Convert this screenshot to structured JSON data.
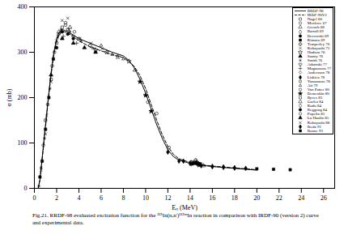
{
  "chart_data": {
    "type": "scatter",
    "caption": "Fig.21.   RRDF-98 evaluated excitation function for the ¹¹⁵In(n,n')¹¹⁵ᵐIn reaction in comparison with IRDF-90 (version 2) curve and experimental data.",
    "x_label": "Eₙ (MeV)",
    "y_label": "σ (mb)",
    "xlim": [
      0,
      27
    ],
    "xticks": [
      0,
      2,
      4,
      6,
      8,
      10,
      12,
      14,
      16,
      18,
      20,
      22,
      24,
      26
    ],
    "ylim": [
      0,
      400
    ],
    "yticks": [
      0,
      100,
      200,
      300,
      400
    ],
    "grid": false,
    "legend": "top-right",
    "series": [
      {
        "name": "RRDF-98",
        "type": "line",
        "line_style": "solid",
        "color": "#000000",
        "x": [
          0.34,
          0.5,
          0.75,
          1,
          1.25,
          1.5,
          1.75,
          2,
          2.25,
          2.5,
          2.75,
          3,
          3.5,
          4,
          5,
          6,
          7,
          8,
          8.5,
          9,
          9.5,
          10,
          10.5,
          11,
          11.5,
          12,
          12.5,
          13,
          14,
          15,
          16,
          17,
          18,
          19,
          20
        ],
        "values": [
          0,
          20,
          80,
          140,
          200,
          255,
          300,
          330,
          345,
          350,
          348,
          345,
          338,
          330,
          320,
          310,
          300,
          292,
          282,
          265,
          240,
          210,
          175,
          140,
          110,
          85,
          70,
          62,
          55,
          51,
          48,
          46,
          44,
          42,
          40
        ]
      },
      {
        "name": "IRDF-90V2",
        "type": "line",
        "line_style": "dashed",
        "color": "#000000",
        "x": [
          0.34,
          0.5,
          0.75,
          1,
          1.25,
          1.5,
          1.75,
          2,
          2.25,
          2.5,
          2.75,
          3,
          3.5,
          4,
          5,
          6,
          7,
          8,
          8.5,
          9,
          9.5,
          10,
          10.5,
          11,
          11.5,
          12,
          12.5,
          13,
          14,
          15,
          16,
          17,
          18,
          19,
          20
        ],
        "values": [
          0,
          18,
          75,
          135,
          195,
          250,
          295,
          325,
          340,
          345,
          345,
          342,
          335,
          325,
          312,
          303,
          295,
          288,
          280,
          268,
          248,
          220,
          185,
          150,
          118,
          92,
          75,
          65,
          57,
          52,
          49,
          47,
          45,
          43,
          41
        ]
      },
      {
        "name": "Nagel 66",
        "marker": "square-open",
        "color": "#000000",
        "x": [
          1,
          1.5,
          2,
          2.5,
          3,
          4
        ],
        "values": [
          150,
          240,
          320,
          355,
          350,
          330
        ]
      },
      {
        "name": "Menlove 67",
        "marker": "circle-open",
        "color": "#000000",
        "x": [
          0.8,
          1.2,
          1.6,
          2.2,
          2.8,
          3.5,
          5
        ],
        "values": [
          95,
          185,
          270,
          340,
          360,
          335,
          315
        ]
      },
      {
        "name": "Grench 68",
        "marker": "triangle-open",
        "color": "#000000",
        "x": [
          14.5,
          14.8,
          15.2
        ],
        "values": [
          55,
          52,
          50
        ]
      },
      {
        "name": "Barrall 69",
        "marker": "diamond-open",
        "color": "#000000",
        "x": [
          14.1,
          14.7,
          16,
          17,
          18
        ],
        "values": [
          54,
          52,
          48,
          46,
          45
        ]
      },
      {
        "name": "Decowski 69",
        "marker": "circle-filled",
        "color": "#000000",
        "x": [
          2,
          2.5,
          3,
          3.5
        ],
        "values": [
          310,
          345,
          340,
          330
        ]
      },
      {
        "name": "Kimura 69",
        "marker": "square-filled",
        "color": "#000000",
        "x": [
          0.5,
          0.7,
          1,
          1.3,
          1.7
        ],
        "values": [
          25,
          60,
          130,
          200,
          285
        ]
      },
      {
        "name": "Temperley 70",
        "marker": "cross-open",
        "color": "#000000",
        "x": [
          14.5,
          14.6
        ],
        "values": [
          62,
          58
        ]
      },
      {
        "name": "Kobayashi 73",
        "marker": "times-open",
        "color": "#000000",
        "x": [
          0.6,
          1,
          1.5,
          2,
          2.5,
          3
        ],
        "values": [
          40,
          120,
          235,
          325,
          370,
          375
        ]
      },
      {
        "name": "Hudson 76",
        "marker": "star-open",
        "color": "#000000",
        "x": [
          5.5,
          6.5,
          7.5,
          8.5
        ],
        "values": [
          305,
          300,
          290,
          280
        ]
      },
      {
        "name": "Santry 76",
        "marker": "triangle-filled",
        "color": "#000000",
        "x": [
          1.5,
          2.5,
          3.5,
          4.5,
          5.5
        ],
        "values": [
          250,
          330,
          320,
          310,
          300
        ]
      },
      {
        "name": "Smith 76",
        "marker": "asterisk-open",
        "color": "#000000",
        "x": [
          0.4,
          0.6,
          0.9,
          1.4,
          1.9,
          2.4,
          3.2,
          4.2
        ],
        "values": [
          5,
          45,
          110,
          220,
          310,
          350,
          345,
          325
        ]
      },
      {
        "name": "Adamski 77",
        "marker": "wye-open",
        "color": "#000000",
        "x": [
          14.6,
          14.9
        ],
        "values": [
          56,
          54
        ]
      },
      {
        "name": "Magnusson 77",
        "marker": "plus-open",
        "color": "#000000",
        "x": [
          2.6,
          3.8,
          5.2
        ],
        "values": [
          335,
          320,
          310
        ]
      },
      {
        "name": "Andersson 78",
        "marker": "diamond2-open",
        "color": "#000000",
        "x": [
          14.7
        ],
        "values": [
          53
        ]
      },
      {
        "name": "Liskien 78",
        "marker": "diamond-filled",
        "color": "#000000",
        "x": [
          12,
          13,
          14,
          15,
          16,
          17,
          18,
          19
        ],
        "values": [
          80,
          60,
          55,
          50,
          48,
          47,
          45,
          44
        ]
      },
      {
        "name": "Yamamoto 78",
        "marker": "square2-open",
        "color": "#000000",
        "x": [
          14.1,
          14.4,
          14.9
        ],
        "values": [
          58,
          56,
          53
        ]
      },
      {
        "name": "Ait 79",
        "marker": "triangle2-open",
        "color": "#000000",
        "x": [
          6,
          7,
          8,
          9
        ],
        "values": [
          315,
          295,
          285,
          260
        ]
      },
      {
        "name": "Van Patter 80",
        "marker": "circle-open",
        "color": "#000000",
        "x": [
          1.8,
          2.8,
          3.6
        ],
        "values": [
          300,
          365,
          345
        ]
      },
      {
        "name": "Demenkin 80",
        "marker": "star-filled",
        "color": "#000000",
        "x": [
          9.5,
          10,
          10.5
        ],
        "values": [
          235,
          205,
          170
        ]
      },
      {
        "name": "Ryves 83",
        "marker": "square-open",
        "color": "#000000",
        "x": [
          14.7,
          14.8
        ],
        "values": [
          55,
          54
        ]
      },
      {
        "name": "Garlea 84",
        "marker": "triangle-open",
        "color": "#000000",
        "x": [
          2.2,
          3.2
        ],
        "values": [
          345,
          355
        ]
      },
      {
        "name": "Kudo 84",
        "marker": "diamond-open",
        "color": "#000000",
        "x": [
          14.1,
          14.9
        ],
        "values": [
          57,
          52
        ]
      },
      {
        "name": "Reggoug 84",
        "marker": "circle-filled",
        "color": "#000000",
        "x": [
          14.2
        ],
        "values": [
          54
        ]
      },
      {
        "name": "Popelin 85",
        "marker": "circle-open",
        "color": "#000000",
        "x": [
          10.2,
          11,
          12.1
        ],
        "values": [
          190,
          165,
          90
        ]
      },
      {
        "name": "Lu Hanlin 85",
        "marker": "triangle-filled",
        "color": "#000000",
        "x": [
          14.5,
          14.6
        ],
        "values": [
          56,
          55
        ]
      },
      {
        "name": "Kobayashi 88",
        "marker": "times-open",
        "color": "#000000",
        "x": [
          1.1,
          2.1,
          3.1,
          4.1,
          5.1,
          6.1
        ],
        "values": [
          160,
          335,
          350,
          330,
          320,
          308
        ]
      },
      {
        "name": "Ikeda 91",
        "marker": "diamond-filled",
        "color": "#000000",
        "x": [
          13.4,
          14.3,
          14.8
        ],
        "values": [
          60,
          56,
          53
        ]
      },
      {
        "name": "Bonne 93",
        "marker": "square-filled",
        "color": "#000000",
        "x": [
          20,
          21.5,
          23
        ],
        "values": [
          43,
          42,
          41
        ]
      }
    ]
  }
}
